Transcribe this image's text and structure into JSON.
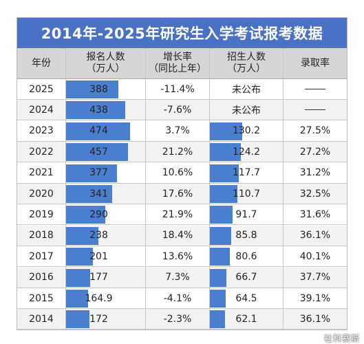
{
  "title": "2014年-2025年研究生入学考试报考数据",
  "headers": {
    "year": "年份",
    "applicants_line1": "报名人数",
    "applicants_line2": "（万人）",
    "growth_line1": "增长率",
    "growth_line2": "（同比上年）",
    "admissions_line1": "招生人数",
    "admissions_line2": "（万人）",
    "rate": "录取率"
  },
  "watermark": "社科赛斯",
  "colors": {
    "title_bg": "#4a72c4",
    "bar": "#4a7fd0",
    "header_bg": "#d5d5d5"
  },
  "chart_data": {
    "type": "table",
    "title": "2014年-2025年研究生入学考试报考数据",
    "columns": [
      "年份",
      "报名人数（万人）",
      "增长率（同比上年）",
      "招生人数（万人）",
      "录取率"
    ],
    "rows": [
      {
        "year": "2025",
        "applicants": "388",
        "growth": "-11.4%",
        "admissions": "未公布",
        "rate": ""
      },
      {
        "year": "2024",
        "applicants": "438",
        "growth": "-7.6%",
        "admissions": "未公布",
        "rate": ""
      },
      {
        "year": "2023",
        "applicants": "474",
        "growth": "3.7%",
        "admissions": "130.2",
        "rate": "27.5%"
      },
      {
        "year": "2022",
        "applicants": "457",
        "growth": "21.2%",
        "admissions": "124.2",
        "rate": "27.2%"
      },
      {
        "year": "2021",
        "applicants": "377",
        "growth": "10.6%",
        "admissions": "117.7",
        "rate": "31.2%"
      },
      {
        "year": "2020",
        "applicants": "341",
        "growth": "17.6%",
        "admissions": "110.7",
        "rate": "32.5%"
      },
      {
        "year": "2019",
        "applicants": "290",
        "growth": "21.9%",
        "admissions": "91.7",
        "rate": "31.6%"
      },
      {
        "year": "2018",
        "applicants": "238",
        "growth": "18.4%",
        "admissions": "85.8",
        "rate": "36.1%"
      },
      {
        "year": "2017",
        "applicants": "201",
        "growth": "13.6%",
        "admissions": "80.6",
        "rate": "40.1%"
      },
      {
        "year": "2016",
        "applicants": "177",
        "growth": "7.3%",
        "admissions": "66.7",
        "rate": "37.7%"
      },
      {
        "year": "2015",
        "applicants": "164.9",
        "growth": "-4.1%",
        "admissions": "64.5",
        "rate": "39.1%"
      },
      {
        "year": "2014",
        "applicants": "172",
        "growth": "-2.3%",
        "admissions": "62.1",
        "rate": "36.1%"
      }
    ]
  }
}
